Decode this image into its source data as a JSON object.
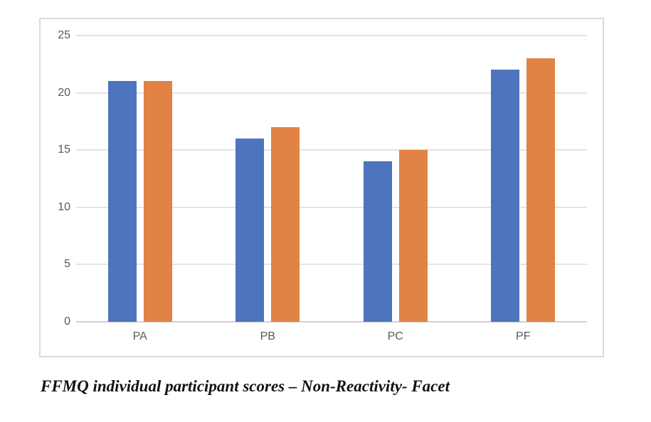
{
  "caption": "FFMQ individual participant scores – Non-Reactivity- Facet",
  "chart_data": {
    "type": "bar",
    "categories": [
      "PA",
      "PB",
      "PC",
      "PF"
    ],
    "series": [
      {
        "name": "blue-series",
        "color": "#4E74BE",
        "values": [
          21,
          16,
          14,
          22
        ]
      },
      {
        "name": "orange-series",
        "color": "#E08344",
        "values": [
          21,
          17,
          15,
          23
        ]
      }
    ],
    "title": "",
    "xlabel": "",
    "ylabel": "",
    "ylim": [
      0,
      25
    ],
    "yticks": [
      0,
      5,
      10,
      15,
      20,
      25
    ],
    "grid": true,
    "legend": false,
    "colors": {
      "gridline": "#E3E3E3",
      "axis_line": "#D2D2D2",
      "frame_border": "#DADADA",
      "tick_label": "#595959"
    }
  }
}
